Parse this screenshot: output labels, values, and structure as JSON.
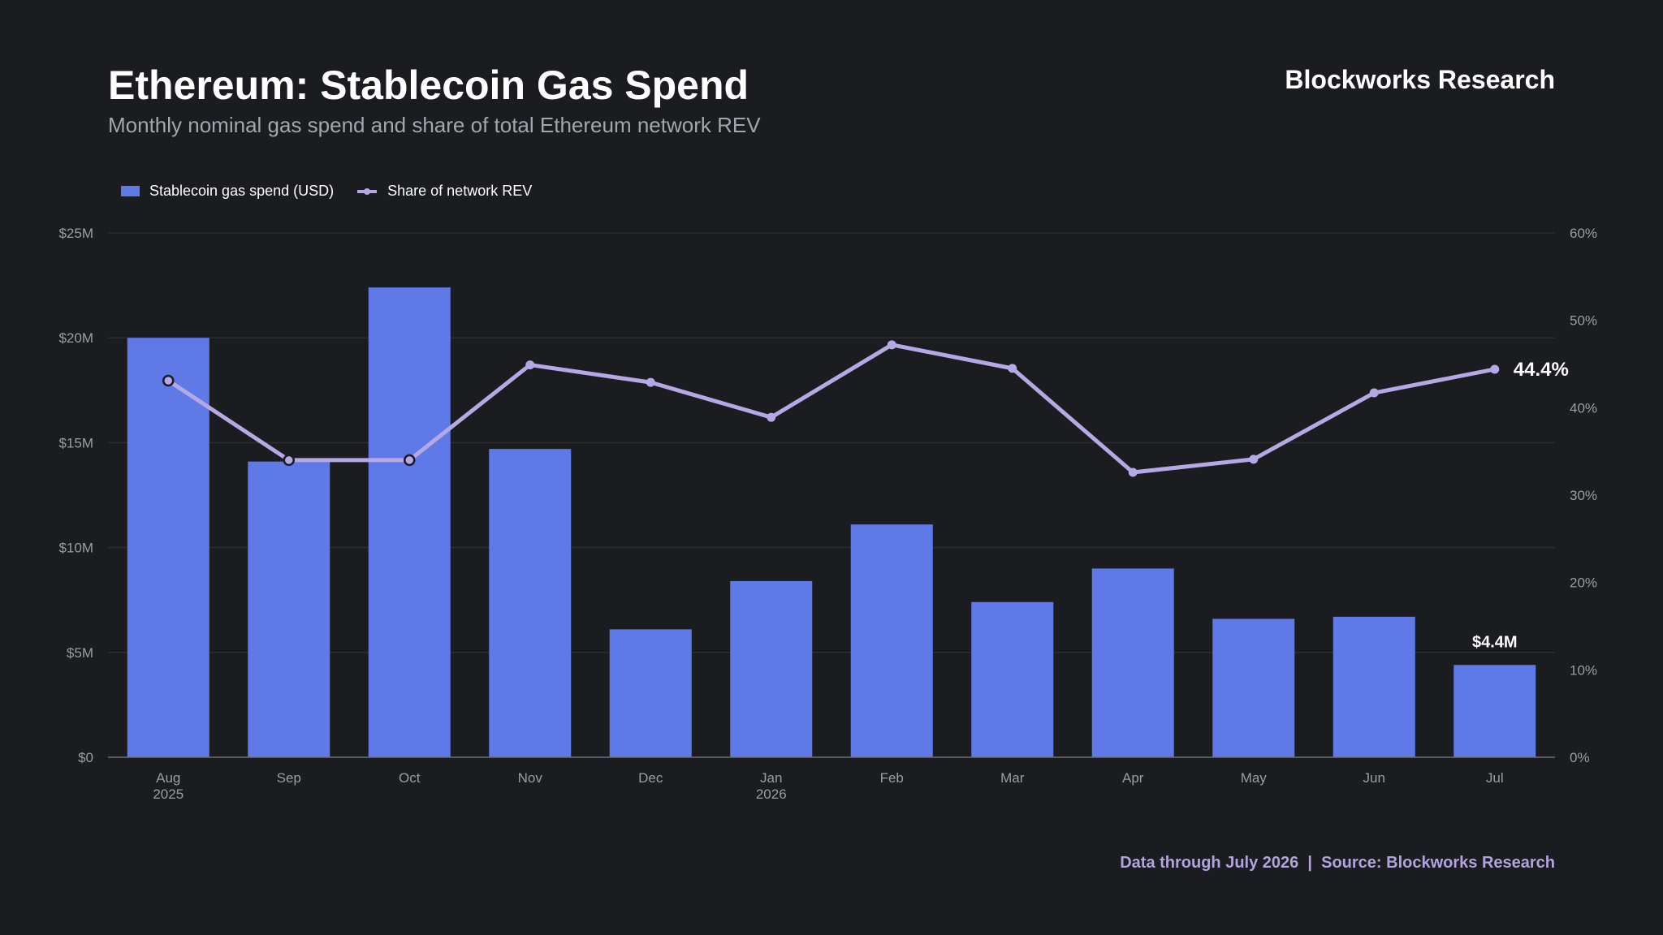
{
  "header": {
    "title": "Ethereum: Stablecoin Gas Spend",
    "subtitle": "Monthly nominal gas spend and share of total Ethereum network REV",
    "brand": "Blockworks Research"
  },
  "footer": {
    "text": "Data through July 2026  |  Source: Blockworks Research"
  },
  "colors": {
    "bar": "#5f7ae6",
    "line": "#b6a8e4",
    "background": "#1b1c20",
    "grid": "#2b2d33"
  },
  "chart_data": {
    "type": "bar",
    "title": "Ethereum: Stablecoin Gas Spend",
    "subtitle": "Monthly nominal gas spend and share of total Ethereum network REV",
    "categories": [
      "Aug 2025",
      "Sep",
      "Oct",
      "Nov",
      "Dec",
      "Jan 2026",
      "Feb",
      "Mar",
      "Apr",
      "May",
      "Jun",
      "Jul"
    ],
    "x_tick_labels": [
      [
        "Aug",
        "2025"
      ],
      [
        "Sep"
      ],
      [
        "Oct"
      ],
      [
        "Nov"
      ],
      [
        "Dec"
      ],
      [
        "Jan",
        "2026"
      ],
      [
        "Feb"
      ],
      [
        "Mar"
      ],
      [
        "Apr"
      ],
      [
        "May"
      ],
      [
        "Jun"
      ],
      [
        "Jul"
      ]
    ],
    "series": [
      {
        "name": "Stablecoin gas spend (USD)",
        "type": "bar",
        "axis": "left",
        "values": [
          20.0,
          14.1,
          22.4,
          14.7,
          6.1,
          8.4,
          11.1,
          7.4,
          9.0,
          6.6,
          6.7,
          4.4
        ]
      },
      {
        "name": "Share of network REV",
        "type": "line",
        "axis": "right",
        "values": [
          43.1,
          34.0,
          34.0,
          44.9,
          42.9,
          38.9,
          47.2,
          44.5,
          32.6,
          34.1,
          41.7,
          44.4
        ]
      }
    ],
    "y_left": {
      "range": [
        0,
        25
      ],
      "ticks": [
        0,
        5,
        10,
        15,
        20,
        25
      ],
      "tick_labels": [
        "$0",
        "$5M",
        "$10M",
        "$15M",
        "$20M",
        "$25M"
      ]
    },
    "y_right": {
      "range": [
        0,
        60
      ],
      "ticks": [
        0,
        10,
        20,
        30,
        40,
        50,
        60
      ],
      "tick_labels": [
        "0%",
        "10%",
        "20%",
        "30%",
        "40%",
        "50%",
        "60%"
      ]
    },
    "annotations": {
      "last_bar_label": "$4.4M",
      "last_line_label": "44.4%"
    },
    "legend": "top-left",
    "grid": true
  }
}
